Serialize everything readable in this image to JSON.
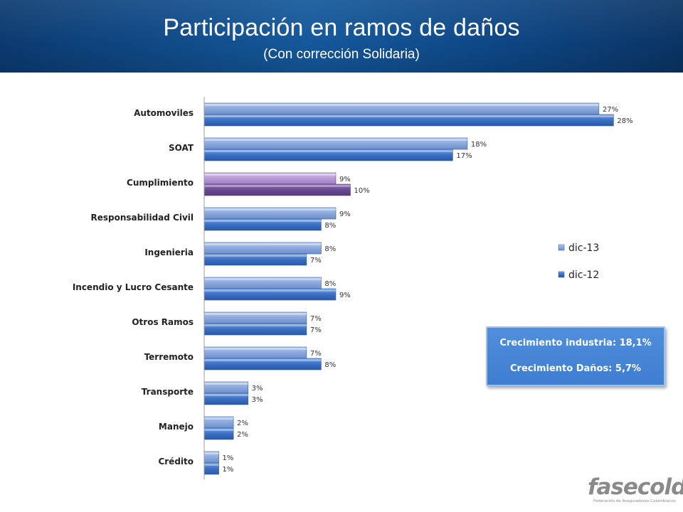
{
  "header": {
    "title": "Participación en ramos de daños",
    "subtitle": "(Con corrección Solidaria)"
  },
  "chart_data": {
    "type": "bar",
    "orientation": "horizontal",
    "categories": [
      "Automoviles",
      "SOAT",
      "Cumplimiento",
      "Responsabilidad Civil",
      "Ingenieria",
      "Incendio y Lucro Cesante",
      "Otros Ramos",
      "Terremoto",
      "Transporte",
      "Manejo",
      "Crédito"
    ],
    "series": [
      {
        "name": "dic-13",
        "values": [
          27,
          18,
          9,
          9,
          8,
          8,
          7,
          7,
          3,
          2,
          1
        ],
        "labels": [
          "27%",
          "18%",
          "9%",
          "9%",
          "8%",
          "8%",
          "7%",
          "7%",
          "3%",
          "2%",
          "1%"
        ],
        "color": "#8aa8dc"
      },
      {
        "name": "dic-12",
        "values": [
          28,
          17,
          10,
          8,
          7,
          9,
          7,
          8,
          3,
          2,
          1
        ],
        "labels": [
          "28%",
          "17%",
          "10%",
          "8%",
          "7%",
          "9%",
          "7%",
          "8%",
          "3%",
          "2%",
          "1%"
        ],
        "color": "#3a6fc4"
      }
    ],
    "highlight_category": "Cumplimiento",
    "highlight_colors": {
      "dic-13": "#b79ad6",
      "dic-12": "#6a4b94"
    },
    "xlim": [
      0,
      28
    ],
    "xlabel": "",
    "ylabel": "",
    "grid": false,
    "legend": "right"
  },
  "callout": {
    "line1": "Crecimiento industria: 18,1%",
    "line2": "Crecimiento Daños: 5,7%"
  },
  "logo": {
    "name": "fasecolda",
    "tagline": "Federación de Aseguradores Colombianos"
  }
}
